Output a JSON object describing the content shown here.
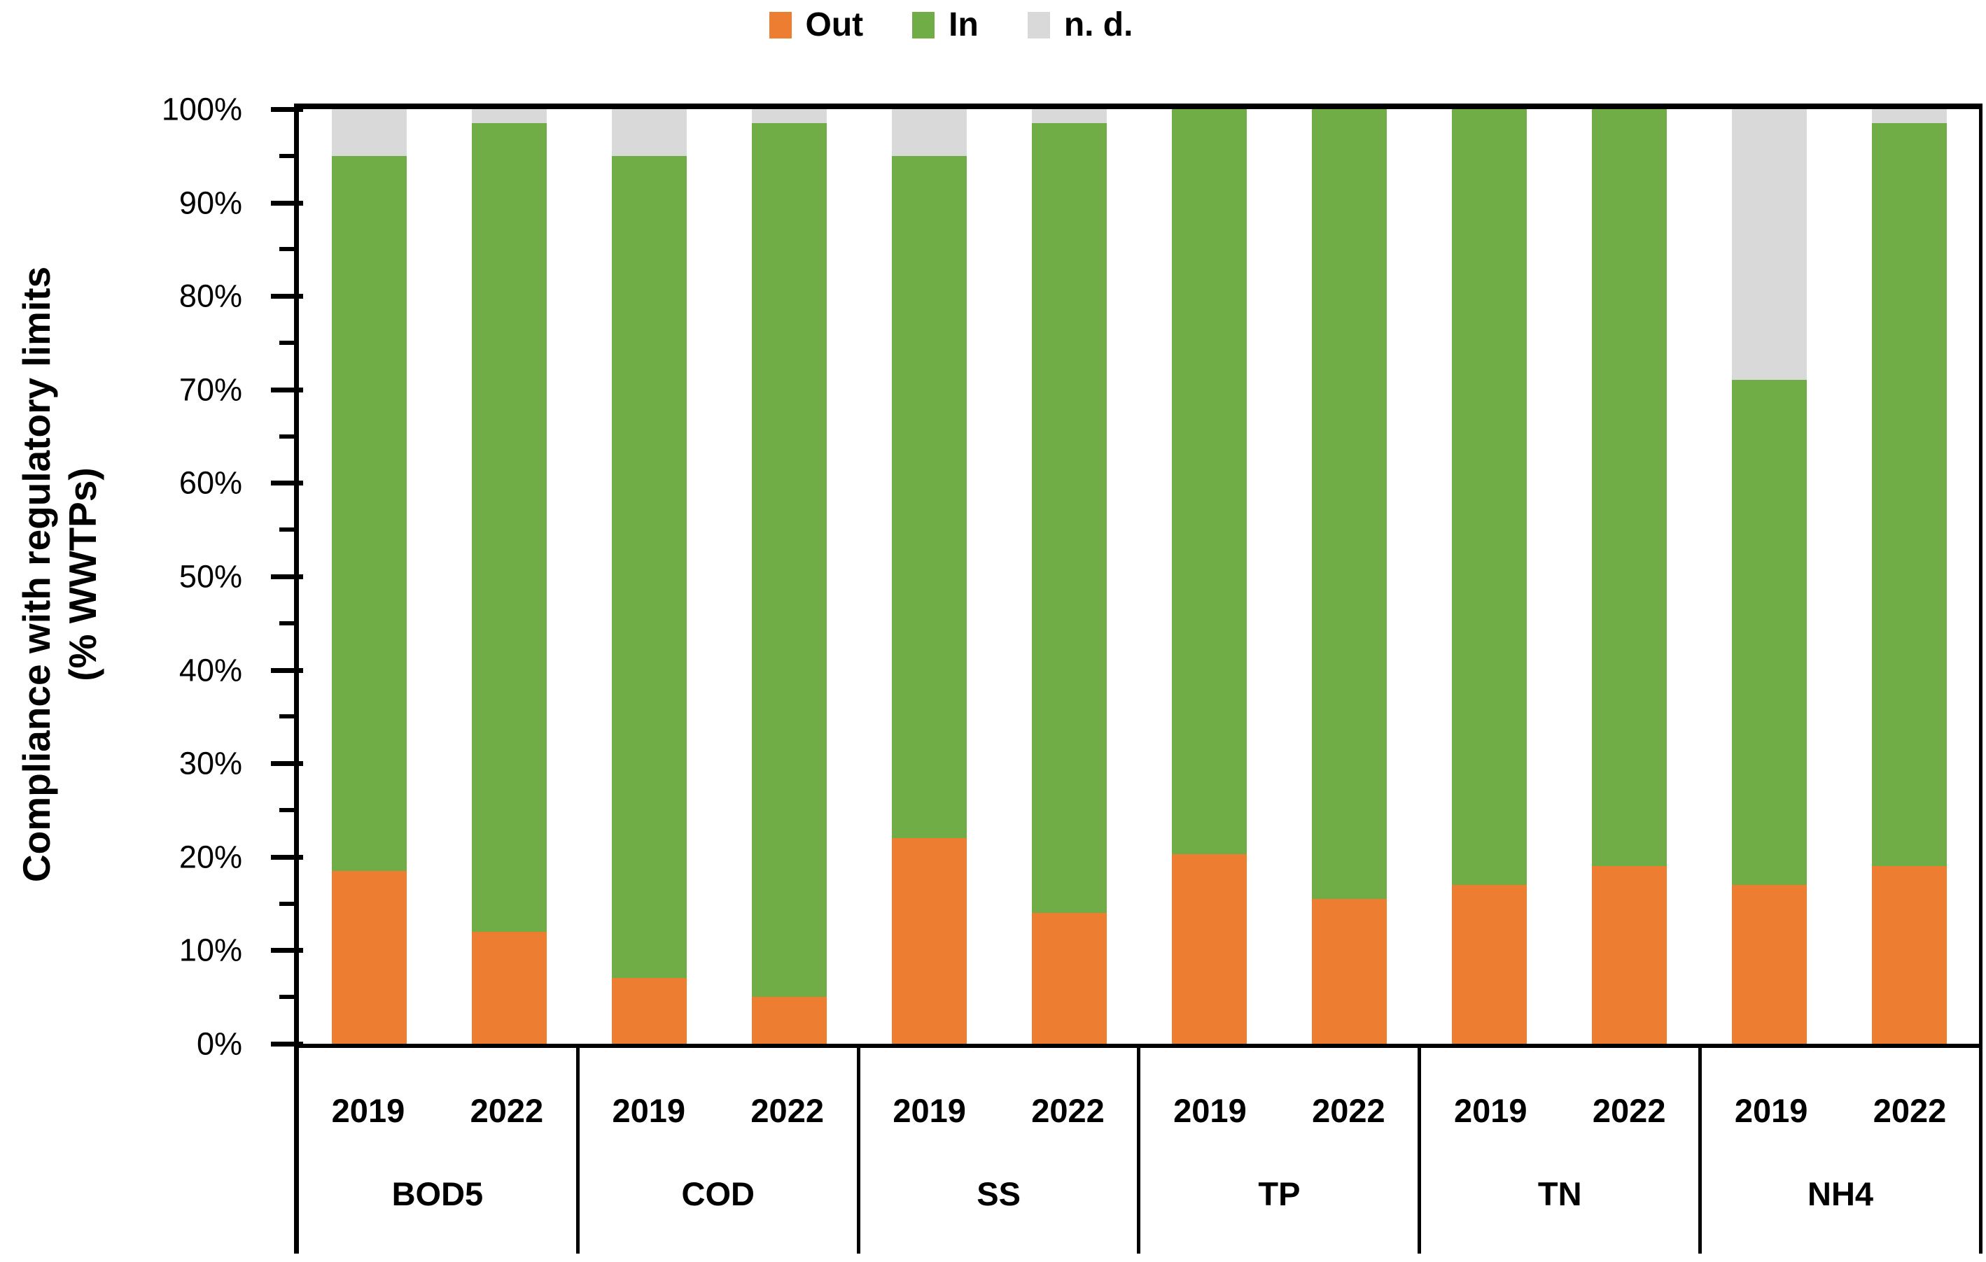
{
  "legend": {
    "items": [
      "Out",
      "In",
      "n. d."
    ]
  },
  "colors": {
    "out": "#ED7D31",
    "in": "#70AD47",
    "nd": "#D9D9D9",
    "axis": "#000000"
  },
  "y_axis": {
    "title": "Compliance with regulatory limits\n(% WWTPs)",
    "tick_labels": [
      "100%",
      "90%",
      "80%",
      "70%",
      "60%",
      "50%",
      "40%",
      "30%",
      "20%",
      "10%",
      "0%"
    ]
  },
  "chart_data": {
    "type": "bar",
    "stacked": true,
    "title": "",
    "xlabel": "",
    "ylabel": "Compliance with regulatory limits (% WWTPs)",
    "ylim": [
      0,
      100
    ],
    "ytick_step_major": 10,
    "ytick_step_minor": 5,
    "grid": false,
    "legend_position": "top-center",
    "categories": [
      "BOD5",
      "COD",
      "SS",
      "TP",
      "TN",
      "NH4"
    ],
    "x_years": [
      "2019",
      "2022"
    ],
    "bar_order": [
      "BOD5-2019",
      "BOD5-2022",
      "COD-2019",
      "COD-2022",
      "SS-2019",
      "SS-2022",
      "TP-2019",
      "TP-2022",
      "TN-2019",
      "TN-2022",
      "NH4-2019",
      "NH4-2022"
    ],
    "series": [
      {
        "name": "Out",
        "color": "#ED7D31",
        "values": [
          18.5,
          12,
          7,
          5,
          22,
          14,
          20.3,
          15.5,
          17,
          19,
          17,
          19
        ]
      },
      {
        "name": "In",
        "color": "#70AD47",
        "values": [
          76.5,
          86.5,
          88,
          93.5,
          73,
          84.5,
          79.7,
          84.5,
          83,
          81,
          54,
          79.5
        ]
      },
      {
        "name": "n. d.",
        "color": "#D9D9D9",
        "values": [
          5,
          1.5,
          5,
          1.5,
          5,
          1.5,
          0,
          0,
          0,
          0,
          29,
          1.5
        ]
      }
    ]
  }
}
